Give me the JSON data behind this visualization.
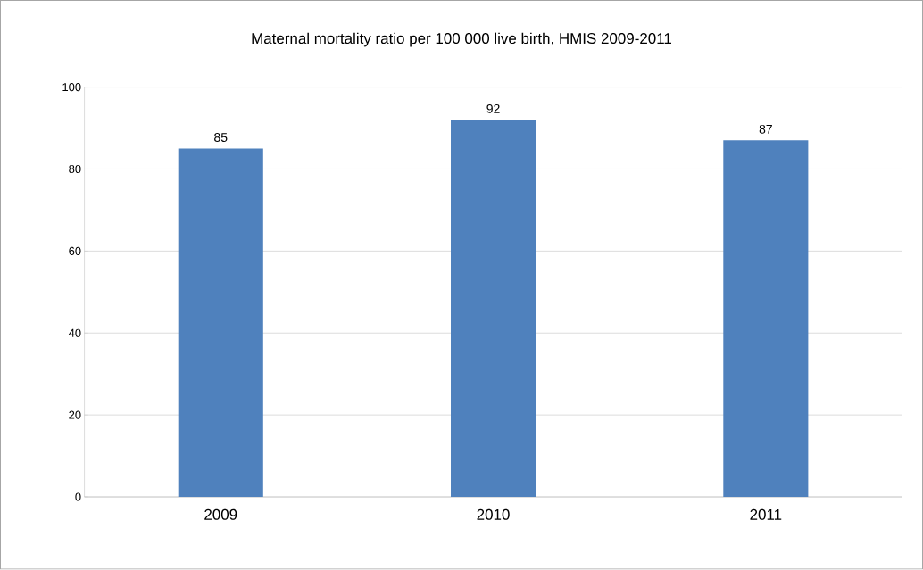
{
  "chart_data": {
    "type": "bar",
    "title": "Maternal mortality ratio per 100 000 live birth, HMIS 2009-2011",
    "categories": [
      "2009",
      "2010",
      "2011"
    ],
    "values": [
      85,
      92,
      87
    ],
    "color": "#4f81bd",
    "ylim": [
      0,
      100
    ],
    "yticks": [
      0,
      20,
      40,
      60,
      80,
      100
    ],
    "grid": "y",
    "data_labels": true
  }
}
